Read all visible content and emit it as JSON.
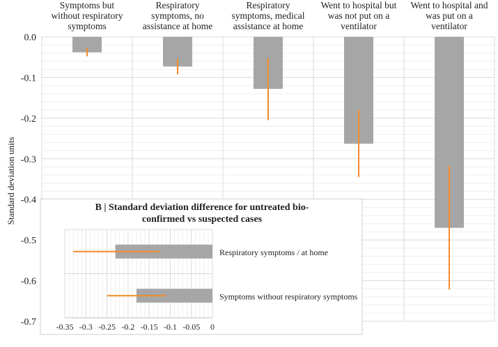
{
  "chart_data": [
    {
      "type": "bar",
      "orientation": "vertical",
      "title": "",
      "ylabel": "Standard deviation units",
      "ylim": [
        -0.7,
        0.0
      ],
      "yticks": [
        "0.0",
        "-0.1",
        "-0.2",
        "-0.3",
        "-0.4",
        "-0.5",
        "-0.6",
        "-0.7"
      ],
      "grid": true,
      "categories": [
        [
          "Symptoms but",
          "without respiratory",
          "symptoms"
        ],
        [
          "Respiratory",
          "symptoms, no",
          "assistance at home"
        ],
        [
          "Respiratory",
          "symptoms, medical",
          "assistance at home"
        ],
        [
          "Went to hospital but",
          "was not put on a",
          "ventilator"
        ],
        [
          "Went to hospital and",
          "was put on a",
          "ventilator"
        ]
      ],
      "values": [
        -0.038,
        -0.073,
        -0.128,
        -0.263,
        -0.47
      ],
      "error_low": [
        -0.048,
        -0.092,
        -0.205,
        -0.345,
        -0.622
      ],
      "error_high": [
        -0.027,
        -0.055,
        -0.052,
        -0.18,
        -0.318
      ],
      "bar_color": "#a6a6a6",
      "error_color": "#f28c28"
    },
    {
      "type": "bar",
      "orientation": "horizontal",
      "title": "B | Standard deviation difference for untreated bio-confirmed vs suspected cases",
      "title_lines": [
        "B | Standard deviation difference for untreated bio-",
        "confirmed vs suspected cases"
      ],
      "xlim": [
        -0.35,
        0
      ],
      "xticks": [
        "-0.35",
        "-0.3",
        "-0.25",
        "-0.2",
        "-0.15",
        "-0.1",
        "-0.05",
        "0"
      ],
      "grid": true,
      "categories": [
        "Respiratory symptoms / at home",
        "Symptoms without respiratory symptoms"
      ],
      "values": [
        -0.23,
        -0.18
      ],
      "error_low": [
        -0.33,
        -0.25
      ],
      "error_high": [
        -0.125,
        -0.11
      ],
      "bar_color": "#a6a6a6",
      "error_color": "#f28c28"
    }
  ]
}
